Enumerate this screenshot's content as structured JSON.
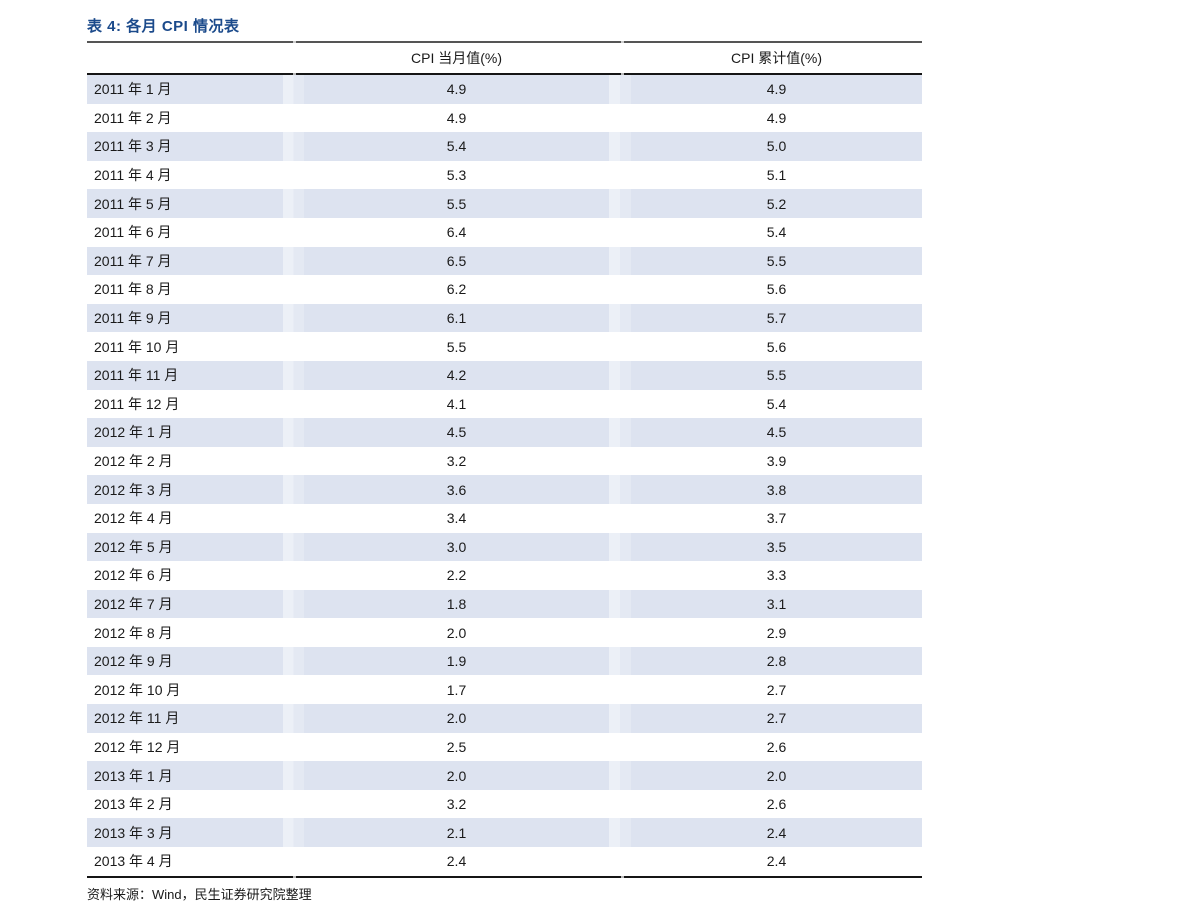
{
  "title": "表 4: 各月 CPI 情况表",
  "table": {
    "headers": {
      "month": "",
      "current": "CPI 当月值(%)",
      "cumulative": "CPI 累计值(%)"
    },
    "rows": [
      [
        "2011 年 1 月",
        "4.9",
        "4.9"
      ],
      [
        "2011 年 2 月",
        "4.9",
        "4.9"
      ],
      [
        "2011 年 3 月",
        "5.4",
        "5.0"
      ],
      [
        "2011 年 4 月",
        "5.3",
        "5.1"
      ],
      [
        "2011 年 5 月",
        "5.5",
        "5.2"
      ],
      [
        "2011 年 6 月",
        "6.4",
        "5.4"
      ],
      [
        "2011 年 7 月",
        "6.5",
        "5.5"
      ],
      [
        "2011 年 8 月",
        "6.2",
        "5.6"
      ],
      [
        "2011 年 9 月",
        "6.1",
        "5.7"
      ],
      [
        "2011 年 10 月",
        "5.5",
        "5.6"
      ],
      [
        "2011 年 11 月",
        "4.2",
        "5.5"
      ],
      [
        "2011 年 12 月",
        "4.1",
        "5.4"
      ],
      [
        "2012 年 1 月",
        "4.5",
        "4.5"
      ],
      [
        "2012 年 2 月",
        "3.2",
        "3.9"
      ],
      [
        "2012 年 3 月",
        "3.6",
        "3.8"
      ],
      [
        "2012 年 4 月",
        "3.4",
        "3.7"
      ],
      [
        "2012 年 5 月",
        "3.0",
        "3.5"
      ],
      [
        "2012 年 6 月",
        "2.2",
        "3.3"
      ],
      [
        "2012 年 7 月",
        "1.8",
        "3.1"
      ],
      [
        "2012 年 8 月",
        "2.0",
        "2.9"
      ],
      [
        "2012 年 9 月",
        "1.9",
        "2.8"
      ],
      [
        "2012 年 10 月",
        "1.7",
        "2.7"
      ],
      [
        "2012 年 11 月",
        "2.0",
        "2.7"
      ],
      [
        "2012 年 12 月",
        "2.5",
        "2.6"
      ],
      [
        "2013 年 1 月",
        "2.0",
        "2.0"
      ],
      [
        "2013 年 2 月",
        "3.2",
        "2.6"
      ],
      [
        "2013 年 3 月",
        "2.1",
        "2.4"
      ],
      [
        "2013 年 4 月",
        "2.4",
        "2.4"
      ]
    ]
  },
  "footer": {
    "source": "资料来源：Wind，民生证券研究院整理"
  },
  "colors": {
    "title_text": "#1b4a8b",
    "row_shade": "#dde3f0",
    "rule_dark": "#151515",
    "rule_gray": "#555555"
  },
  "chart_data": {
    "type": "table",
    "title": "表 4: 各月 CPI 情况表",
    "columns": [
      "",
      "CPI 当月值(%)",
      "CPI 累计值(%)"
    ],
    "rows": [
      [
        "2011 年 1 月",
        4.9,
        4.9
      ],
      [
        "2011 年 2 月",
        4.9,
        4.9
      ],
      [
        "2011 年 3 月",
        5.4,
        5.0
      ],
      [
        "2011 年 4 月",
        5.3,
        5.1
      ],
      [
        "2011 年 5 月",
        5.5,
        5.2
      ],
      [
        "2011 年 6 月",
        6.4,
        5.4
      ],
      [
        "2011 年 7 月",
        6.5,
        5.5
      ],
      [
        "2011 年 8 月",
        6.2,
        5.6
      ],
      [
        "2011 年 9 月",
        6.1,
        5.7
      ],
      [
        "2011 年 10 月",
        5.5,
        5.6
      ],
      [
        "2011 年 11 月",
        4.2,
        5.5
      ],
      [
        "2011 年 12 月",
        4.1,
        5.4
      ],
      [
        "2012 年 1 月",
        4.5,
        4.5
      ],
      [
        "2012 年 2 月",
        3.2,
        3.9
      ],
      [
        "2012 年 3 月",
        3.6,
        3.8
      ],
      [
        "2012 年 4 月",
        3.4,
        3.7
      ],
      [
        "2012 年 5 月",
        3.0,
        3.5
      ],
      [
        "2012 年 6 月",
        2.2,
        3.3
      ],
      [
        "2012 年 7 月",
        1.8,
        3.1
      ],
      [
        "2012 年 8 月",
        2.0,
        2.9
      ],
      [
        "2012 年 9 月",
        1.9,
        2.8
      ],
      [
        "2012 年 10 月",
        1.7,
        2.7
      ],
      [
        "2012 年 11 月",
        2.0,
        2.7
      ],
      [
        "2012 年 12 月",
        2.5,
        2.6
      ],
      [
        "2013 年 1 月",
        2.0,
        2.0
      ],
      [
        "2013 年 2 月",
        3.2,
        2.6
      ],
      [
        "2013 年 3 月",
        2.1,
        2.4
      ],
      [
        "2013 年 4 月",
        2.4,
        2.4
      ]
    ],
    "source_note": "资料来源：Wind，民生证券研究院整理"
  }
}
